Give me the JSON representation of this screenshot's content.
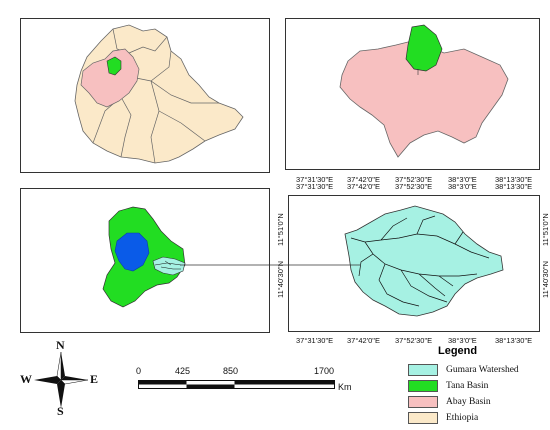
{
  "colors": {
    "ethiopia": "#fbe9c9",
    "abay_basin": "#f7c0c0",
    "tana_basin": "#22dd22",
    "gumara_watershed": "#a6f1e3",
    "lake": "#0a5be8",
    "river": "#111111"
  },
  "top_right_coords": {
    "x_labels": [
      "37°31'30\"E",
      "37°42'0\"E",
      "37°52'30\"E",
      "38°3'0\"E",
      "38°13'30\"E"
    ]
  },
  "bottom_right_coords": {
    "x_top_labels": [
      "37°31'30\"E",
      "37°42'0\"E",
      "37°52'30\"E",
      "38°3'0\"E",
      "38°13'30\"E"
    ],
    "x_bottom_labels": [
      "37°31'30\"E",
      "37°42'0\"E",
      "37°52'30\"E",
      "38°3'0\"E",
      "38°13'30\"E"
    ],
    "y_left_labels": [
      "11°51'0\"N",
      "11°40'30\"N"
    ],
    "y_right_labels": [
      "11°51'0\"N",
      "11°40'30\"N"
    ]
  },
  "compass": {
    "n": "N",
    "s": "S",
    "e": "E",
    "w": "W"
  },
  "scale_bar": {
    "ticks": [
      "0",
      "425",
      "850",
      "1700"
    ],
    "unit": "Km"
  },
  "legend": {
    "title": "Legend",
    "items": [
      {
        "label": "Gumara Watershed",
        "color": "#a6f1e3"
      },
      {
        "label": "Tana Basin",
        "color": "#22dd22"
      },
      {
        "label": "Abay Basin",
        "color": "#f7c0c0"
      },
      {
        "label": "Ethiopia",
        "color": "#fbe9c9"
      }
    ]
  }
}
